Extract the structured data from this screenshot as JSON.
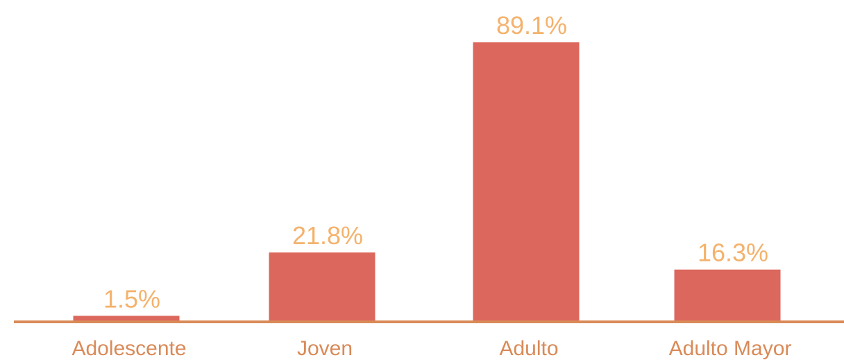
{
  "chart_data": {
    "type": "bar",
    "categories": [
      "Adolescente",
      "Joven",
      "Adulto",
      "Adulto Mayor"
    ],
    "values": [
      1.5,
      21.8,
      89.1,
      16.3
    ],
    "value_labels": [
      "1.5%",
      "21.8%",
      "89.1%",
      "16.3%"
    ],
    "color": "#dc675c"
  }
}
